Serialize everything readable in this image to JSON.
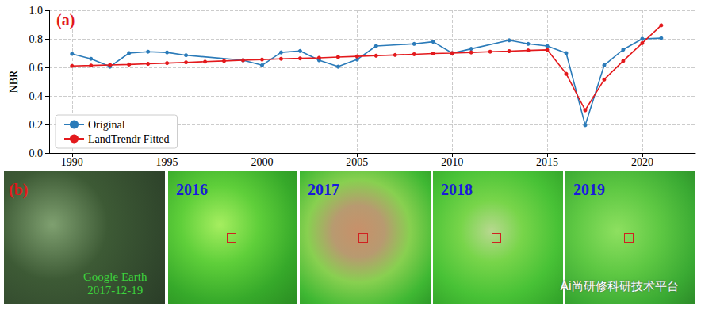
{
  "chart_data": {
    "type": "line",
    "title": "(a)",
    "y_label": "NBR",
    "xlim": [
      1988.8,
      2022.8
    ],
    "xticks": [
      1990,
      1995,
      2000,
      2005,
      2010,
      2015,
      2020
    ],
    "ylim": [
      0,
      1
    ],
    "yticks": [
      {
        "value": 0,
        "label": "0.0"
      },
      {
        "value": 0.2,
        "label": "0.2"
      },
      {
        "value": 0.4,
        "label": "0.4"
      },
      {
        "value": 0.6,
        "label": "0.6"
      },
      {
        "value": 0.8,
        "label": "0.8"
      },
      {
        "value": 1,
        "label": "1.0"
      }
    ],
    "grid": true,
    "legend": "lower left",
    "series": [
      {
        "name": "Original",
        "color": "#2b7bb9",
        "marker": "circle",
        "line_style": "solid",
        "x": [
          1990,
          1991,
          1992,
          1993,
          1994,
          1995,
          1996,
          1999,
          2000,
          2001,
          2002,
          2003,
          2004,
          2005,
          2006,
          2008,
          2009,
          2010,
          2011,
          2013,
          2014,
          2015,
          2016,
          2017,
          2018,
          2019,
          2020,
          2021
        ],
        "values": [
          0.695,
          0.66,
          0.605,
          0.7,
          0.71,
          0.705,
          0.685,
          0.65,
          0.615,
          0.705,
          0.715,
          0.65,
          0.605,
          0.655,
          0.75,
          0.765,
          0.78,
          0.7,
          0.73,
          0.79,
          0.765,
          0.75,
          0.7,
          0.195,
          0.615,
          0.725,
          0.8,
          0.805
        ]
      },
      {
        "name": "LandTrendr Fitted",
        "color": "#e3191c",
        "marker": "circle",
        "line_style": "solid",
        "x": [
          1990,
          1991,
          1992,
          1993,
          1994,
          1995,
          1996,
          1997,
          1998,
          1999,
          2000,
          2001,
          2002,
          2003,
          2004,
          2005,
          2006,
          2007,
          2008,
          2009,
          2010,
          2011,
          2012,
          2013,
          2014,
          2015,
          2016,
          2017,
          2018,
          2019,
          2020,
          2021
        ],
        "values": [
          0.61,
          0.613,
          0.617,
          0.62,
          0.625,
          0.63,
          0.635,
          0.64,
          0.645,
          0.65,
          0.655,
          0.66,
          0.663,
          0.667,
          0.672,
          0.677,
          0.682,
          0.687,
          0.692,
          0.697,
          0.7,
          0.705,
          0.71,
          0.714,
          0.719,
          0.723,
          0.555,
          0.3,
          0.515,
          0.645,
          0.77,
          0.895
        ]
      }
    ]
  },
  "panels": {
    "label": "(b)",
    "google_earth": [
      "Google Earth",
      "2017-12-19"
    ],
    "years": [
      "2016",
      "2017",
      "2018",
      "2019"
    ]
  },
  "watermark": "Ai尚研修科研技术平台"
}
